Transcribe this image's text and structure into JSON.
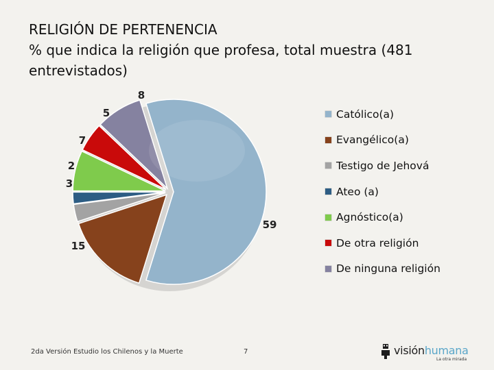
{
  "title": {
    "line1": "RELIGIÓN DE PERTENENCIA",
    "line2": "% que indica la religión que profesa, total muestra (481",
    "line3": "entrevistados)"
  },
  "chart_data": {
    "type": "pie",
    "title": "RELIGIÓN DE PERTENENCIA",
    "categories": [
      "Católico(a)",
      "Evangélico(a)",
      "Testigo de Jehová",
      "Ateo (a)",
      "Agnóstico(a)",
      "De otra religión",
      "De ninguna religión"
    ],
    "values": [
      59,
      15,
      3,
      2,
      7,
      5,
      8
    ],
    "labels": [
      "59",
      "15",
      "3",
      "2",
      "7",
      "5",
      "8"
    ],
    "colors": [
      "#94b4cb",
      "#86421c",
      "#a3a3a3",
      "#2d5d84",
      "#7fcb4c",
      "#c90a0a",
      "#8582a0"
    ],
    "legend_position": "right"
  },
  "footer": {
    "study": "2da Versión Estudio los Chilenos y la Muerte",
    "page": "7"
  },
  "logo": {
    "part1": "visión",
    "part2": "humana",
    "tagline": "La otra mirada"
  }
}
